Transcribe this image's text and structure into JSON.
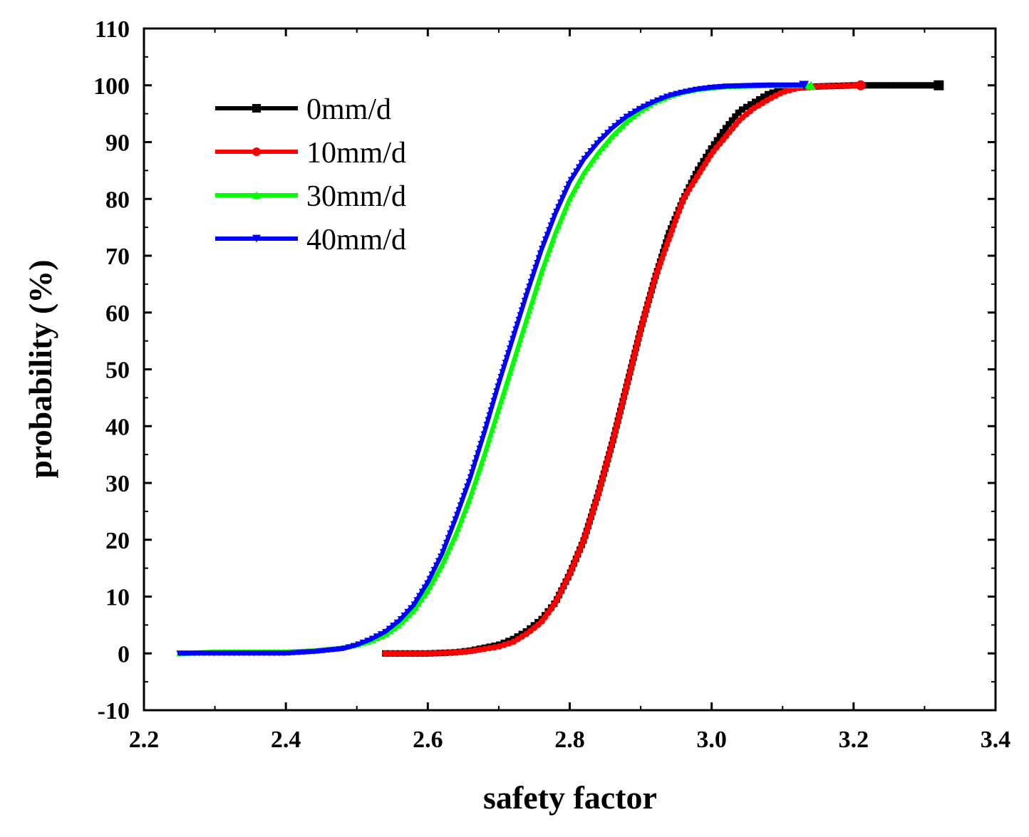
{
  "chart_data": {
    "type": "line",
    "title": "",
    "xlabel": "safety factor",
    "ylabel": "probability (%)",
    "xlim": [
      2.2,
      3.4
    ],
    "ylim": [
      -10,
      110
    ],
    "xticks": [
      "2.2",
      "2.4",
      "2.6",
      "2.8",
      "3.0",
      "3.2",
      "3.4"
    ],
    "yticks": [
      "-10",
      "0",
      "10",
      "20",
      "30",
      "40",
      "50",
      "60",
      "70",
      "80",
      "90",
      "100",
      "110"
    ],
    "grid": false,
    "legend_position": "top-left",
    "series": [
      {
        "name": "0mm/d",
        "color": "#000000",
        "marker": "square",
        "x": [
          2.54,
          2.6,
          2.64,
          2.66,
          2.68,
          2.7,
          2.72,
          2.74,
          2.76,
          2.78,
          2.8,
          2.82,
          2.84,
          2.86,
          2.88,
          2.9,
          2.92,
          2.94,
          2.96,
          2.98,
          3.0,
          3.02,
          3.04,
          3.06,
          3.08,
          3.1,
          3.12,
          3.15,
          3.2,
          3.25,
          3.32
        ],
        "y": [
          0,
          0,
          0.2,
          0.5,
          1,
          1.5,
          2.5,
          4,
          6,
          9,
          14,
          20,
          28,
          37,
          47,
          57,
          66,
          74,
          80,
          85,
          89,
          92.5,
          95.5,
          97,
          98.5,
          99.2,
          99.6,
          99.8,
          100,
          100,
          100
        ]
      },
      {
        "name": "10mm/d",
        "color": "#ff0000",
        "marker": "circle",
        "x": [
          2.54,
          2.6,
          2.64,
          2.66,
          2.68,
          2.7,
          2.72,
          2.74,
          2.76,
          2.78,
          2.8,
          2.82,
          2.84,
          2.86,
          2.88,
          2.9,
          2.92,
          2.94,
          2.96,
          2.98,
          3.0,
          3.02,
          3.04,
          3.06,
          3.08,
          3.1,
          3.12,
          3.15,
          3.21
        ],
        "y": [
          0,
          0,
          0.2,
          0.4,
          0.8,
          1.2,
          2,
          3.5,
          5.5,
          9,
          14,
          20,
          28,
          37,
          47,
          57,
          66,
          73,
          80,
          84,
          88,
          91,
          94,
          96,
          97.5,
          98.8,
          99.5,
          99.8,
          100
        ]
      },
      {
        "name": "30mm/d",
        "color": "#00ff00",
        "marker": "triangle",
        "x": [
          2.25,
          2.3,
          2.35,
          2.4,
          2.44,
          2.48,
          2.5,
          2.52,
          2.54,
          2.56,
          2.58,
          2.6,
          2.62,
          2.64,
          2.66,
          2.68,
          2.7,
          2.72,
          2.74,
          2.76,
          2.78,
          2.8,
          2.82,
          2.84,
          2.86,
          2.88,
          2.9,
          2.92,
          2.94,
          2.96,
          2.98,
          3.0,
          3.02,
          3.05,
          3.08,
          3.14
        ],
        "y": [
          0,
          0.3,
          0.3,
          0.3,
          0.5,
          1,
          1.5,
          2.2,
          3.2,
          5,
          7.5,
          11,
          15.5,
          21,
          27.5,
          35,
          43,
          51,
          59,
          67,
          74,
          80,
          84.5,
          88,
          91,
          93.5,
          95.5,
          97,
          98,
          98.8,
          99.3,
          99.6,
          99.8,
          99.9,
          100,
          100
        ]
      },
      {
        "name": "40mm/d",
        "color": "#0000ff",
        "marker": "triangle-down",
        "x": [
          2.25,
          2.3,
          2.35,
          2.4,
          2.44,
          2.48,
          2.5,
          2.52,
          2.54,
          2.56,
          2.58,
          2.6,
          2.62,
          2.64,
          2.66,
          2.68,
          2.7,
          2.72,
          2.74,
          2.76,
          2.78,
          2.8,
          2.82,
          2.84,
          2.86,
          2.88,
          2.9,
          2.92,
          2.94,
          2.96,
          2.98,
          3.0,
          3.02,
          3.05,
          3.08,
          3.13
        ],
        "y": [
          0,
          0,
          0,
          0,
          0.3,
          0.8,
          1.5,
          2.5,
          3.8,
          5.8,
          8.5,
          12.5,
          17.5,
          24,
          31,
          39,
          47.5,
          55.5,
          63.5,
          71,
          77.5,
          83,
          87,
          90,
          92.5,
          94.5,
          96,
          97.2,
          98.2,
          98.8,
          99.3,
          99.6,
          99.8,
          99.9,
          100,
          100
        ]
      }
    ]
  }
}
